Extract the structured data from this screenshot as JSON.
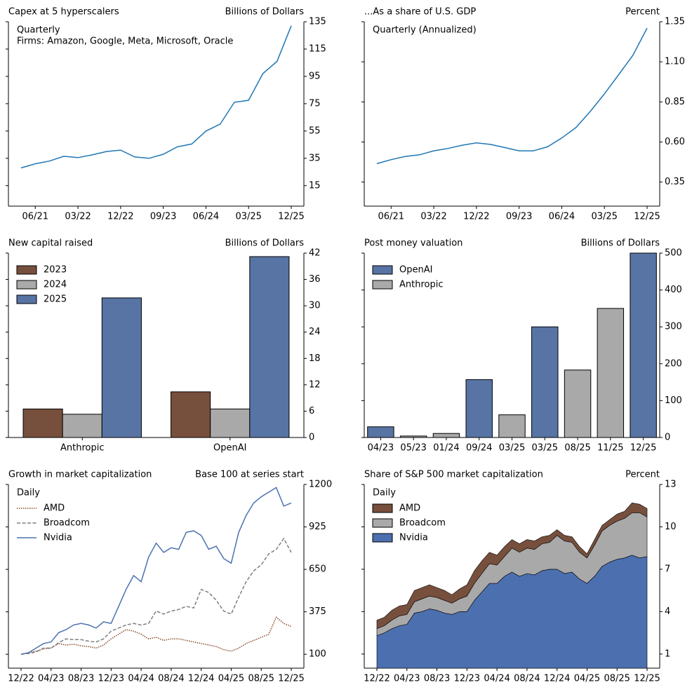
{
  "chart_data": [
    {
      "type": "line",
      "title": "Capex at 5 hyperscalers",
      "units": "Billions of Dollars",
      "annotations": [
        "Quarterly",
        "Firms: Amazon, Google, Meta, Microsoft, Oracle"
      ],
      "x": [
        "03/21",
        "06/21",
        "09/21",
        "12/21",
        "03/22",
        "06/22",
        "09/22",
        "12/22",
        "03/23",
        "06/23",
        "09/23",
        "12/23",
        "03/24",
        "06/24",
        "09/24",
        "12/24",
        "03/25",
        "06/25",
        "09/25",
        "12/25"
      ],
      "values": [
        28,
        31,
        33,
        36.5,
        35.5,
        37.5,
        40,
        41,
        36,
        35,
        38,
        43.5,
        45.5,
        55,
        60,
        76,
        77.5,
        97,
        106,
        132
      ],
      "color": "#1f77b4",
      "xticks": [
        "06/21",
        "03/22",
        "12/22",
        "09/23",
        "06/24",
        "03/25",
        "12/25"
      ],
      "ylim": [
        0,
        135
      ],
      "yticks": [
        15,
        35,
        55,
        75,
        95,
        115,
        135
      ]
    },
    {
      "type": "line",
      "title": "...As a share of U.S. GDP",
      "units": "Percent",
      "annotations": [
        "Quarterly (Annualized)"
      ],
      "x": [
        "03/21",
        "06/21",
        "09/21",
        "12/21",
        "03/22",
        "06/22",
        "09/22",
        "12/22",
        "03/23",
        "06/23",
        "09/23",
        "12/23",
        "03/24",
        "06/24",
        "09/24",
        "12/24",
        "03/25",
        "06/25",
        "09/25",
        "12/25"
      ],
      "values": [
        0.465,
        0.49,
        0.51,
        0.52,
        0.545,
        0.56,
        0.58,
        0.595,
        0.585,
        0.565,
        0.545,
        0.545,
        0.57,
        0.625,
        0.69,
        0.79,
        0.9,
        1.02,
        1.14,
        1.31
      ],
      "color": "#1f77b4",
      "xticks": [
        "06/21",
        "03/22",
        "12/22",
        "09/23",
        "06/24",
        "03/25",
        "12/25"
      ],
      "ylim": [
        0.2,
        1.35
      ],
      "yticks": [
        0.35,
        {
          "value": 0.6,
          "label": "0.60"
        },
        0.85,
        {
          "value": 1.1,
          "label": "1.10"
        },
        1.35
      ]
    },
    {
      "type": "bar",
      "title": "New capital raised",
      "units": "Billions of Dollars",
      "categories": [
        "Anthropic",
        "OpenAI"
      ],
      "series": [
        {
          "name": "2023",
          "color": "#774f3d",
          "values": [
            6.5,
            10.4
          ]
        },
        {
          "name": "2024",
          "color": "#a9a9a9",
          "values": [
            5.3,
            6.5
          ]
        },
        {
          "name": "2025",
          "color": "#5874a4",
          "values": [
            31.8,
            41.2
          ]
        }
      ],
      "ylim": [
        0,
        42
      ],
      "yticks": [
        0,
        6,
        12,
        18,
        24,
        30,
        36,
        42
      ],
      "legend": "upper left"
    },
    {
      "type": "bar",
      "title": "Post money valuation",
      "units": "Billions of Dollars",
      "categories": [
        "04/23",
        "05/23",
        "01/24",
        "09/24",
        "03/25",
        "03/25",
        "08/25",
        "11/25",
        "12/25"
      ],
      "series": [
        {
          "name": "OpenAI",
          "color": "#5874a4",
          "values": [
            29,
            null,
            null,
            157,
            null,
            300,
            null,
            null,
            500
          ]
        },
        {
          "name": "Anthropic",
          "color": "#a9a9a9",
          "values": [
            null,
            4,
            11,
            null,
            61.5,
            null,
            183,
            350,
            null
          ]
        }
      ],
      "ylim": [
        0,
        500
      ],
      "yticks": [
        0,
        100,
        200,
        300,
        400,
        500
      ],
      "legend": "upper left"
    },
    {
      "type": "line",
      "title": "Growth in market capitalization",
      "units": "Base 100 at series start",
      "annotations": [
        "Daily"
      ],
      "x": [
        "12/22",
        "01/23",
        "02/23",
        "03/23",
        "04/23",
        "05/23",
        "06/23",
        "07/23",
        "08/23",
        "09/23",
        "10/23",
        "11/23",
        "12/23",
        "01/24",
        "02/24",
        "03/24",
        "04/24",
        "05/24",
        "06/24",
        "07/24",
        "08/24",
        "09/24",
        "10/24",
        "11/24",
        "12/24",
        "01/25",
        "02/25",
        "03/25",
        "04/25",
        "05/25",
        "06/25",
        "07/25",
        "08/25",
        "09/25",
        "10/25",
        "11/25",
        "12/25"
      ],
      "series": [
        {
          "name": "AMD",
          "color": "#8b4a2b",
          "linestyle": "dotted",
          "values": [
            100,
            110,
            120,
            135,
            140,
            170,
            160,
            165,
            155,
            150,
            140,
            160,
            200,
            230,
            260,
            250,
            230,
            200,
            210,
            190,
            200,
            200,
            190,
            180,
            170,
            160,
            150,
            130,
            120,
            140,
            170,
            190,
            210,
            230,
            340,
            300,
            280
          ]
        },
        {
          "name": "Broadcom",
          "color": "#7f7f7f",
          "linestyle": "dashed",
          "values": [
            100,
            105,
            115,
            140,
            140,
            175,
            200,
            195,
            195,
            185,
            180,
            200,
            250,
            270,
            290,
            300,
            290,
            300,
            380,
            360,
            380,
            390,
            410,
            400,
            520,
            500,
            450,
            380,
            360,
            470,
            570,
            640,
            680,
            750,
            780,
            850,
            760
          ]
        },
        {
          "name": "Nvidia",
          "color": "#4c72b0",
          "linestyle": "solid",
          "values": [
            100,
            110,
            140,
            170,
            180,
            240,
            260,
            290,
            300,
            290,
            270,
            310,
            300,
            410,
            520,
            610,
            570,
            730,
            820,
            760,
            790,
            780,
            890,
            900,
            870,
            780,
            800,
            720,
            690,
            890,
            1000,
            1080,
            1120,
            1150,
            1180,
            1060,
            1080
          ]
        }
      ],
      "xticks": [
        "12/22",
        "04/23",
        "08/23",
        "12/23",
        "04/24",
        "08/24",
        "12/24",
        "04/25",
        "08/25",
        "12/25"
      ],
      "ylim": [
        10,
        1200
      ],
      "yticks": [
        100,
        375,
        650,
        925,
        1200
      ],
      "legend": "upper left"
    },
    {
      "type": "area",
      "title": "Share of S&P 500 market capitalization",
      "units": "Percent",
      "annotations": [
        "Daily"
      ],
      "x": [
        "12/22",
        "01/23",
        "02/23",
        "03/23",
        "04/23",
        "05/23",
        "06/23",
        "07/23",
        "08/23",
        "09/23",
        "10/23",
        "11/23",
        "12/23",
        "01/24",
        "02/24",
        "03/24",
        "04/24",
        "05/24",
        "06/24",
        "07/24",
        "08/24",
        "09/24",
        "10/24",
        "11/24",
        "12/24",
        "01/25",
        "02/25",
        "03/25",
        "04/25",
        "05/25",
        "06/25",
        "07/25",
        "08/25",
        "09/25",
        "10/25",
        "11/25",
        "12/25"
      ],
      "series": [
        {
          "name": "AMD",
          "color": "#774f3d",
          "values": [
            0.6,
            0.6,
            0.7,
            0.7,
            0.7,
            0.8,
            0.8,
            0.8,
            0.7,
            0.7,
            0.6,
            0.7,
            0.8,
            0.9,
            0.9,
            0.8,
            0.7,
            0.7,
            0.6,
            0.6,
            0.6,
            0.6,
            0.5,
            0.5,
            0.4,
            0.4,
            0.4,
            0.4,
            0.3,
            0.4,
            0.4,
            0.4,
            0.5,
            0.5,
            0.7,
            0.6,
            0.6
          ]
        },
        {
          "name": "Broadcom",
          "color": "#a9a9a9",
          "values": [
            0.5,
            0.5,
            0.6,
            0.7,
            0.7,
            0.8,
            0.9,
            0.9,
            0.9,
            0.9,
            0.8,
            0.9,
            1.1,
            1.2,
            1.3,
            1.4,
            1.3,
            1.4,
            1.7,
            1.7,
            1.8,
            1.8,
            1.9,
            1.9,
            2.4,
            2.3,
            2.1,
            1.9,
            1.8,
            2.2,
            2.5,
            2.6,
            2.7,
            2.8,
            3.0,
            3.2,
            2.8
          ]
        },
        {
          "name": "Nvidia",
          "color": "#4c6faf",
          "values": [
            2.3,
            2.5,
            2.8,
            3.0,
            3.1,
            3.9,
            4.0,
            4.2,
            4.1,
            3.9,
            3.8,
            4.0,
            4.0,
            4.8,
            5.4,
            6.0,
            6.0,
            6.5,
            6.8,
            6.5,
            6.7,
            6.6,
            6.9,
            7.0,
            7.0,
            6.7,
            6.8,
            6.3,
            6.0,
            6.5,
            7.2,
            7.5,
            7.7,
            7.8,
            8.0,
            7.8,
            7.9
          ]
        }
      ],
      "xticks": [
        "12/22",
        "04/23",
        "08/23",
        "12/23",
        "04/24",
        "08/24",
        "12/24",
        "04/25",
        "08/25",
        "12/25"
      ],
      "ylim": [
        0,
        13
      ],
      "yticks": [
        1,
        4,
        7,
        10,
        13
      ],
      "legend": "upper left"
    }
  ]
}
